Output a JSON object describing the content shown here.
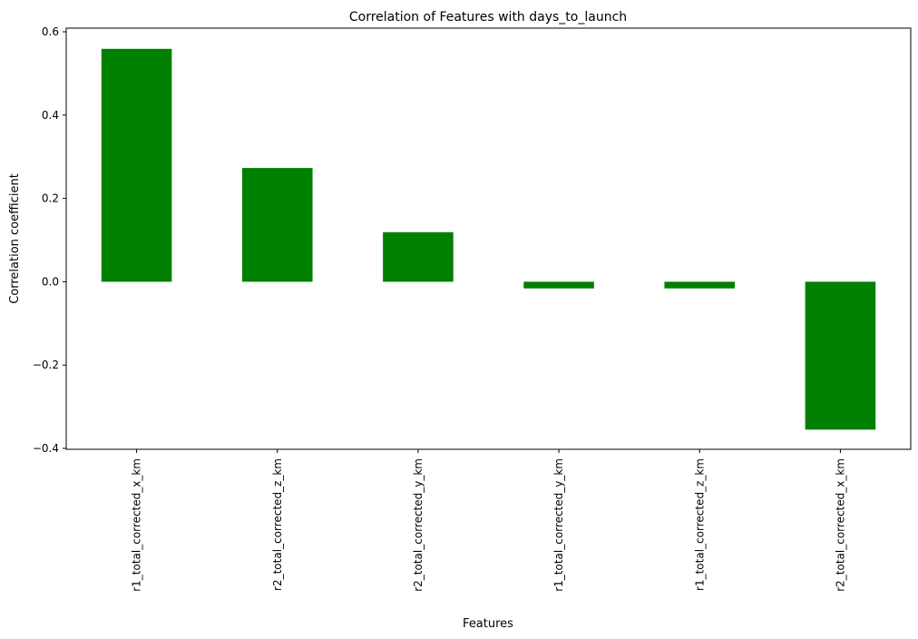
{
  "chart_data": {
    "type": "bar",
    "title": "Correlation of Features with days_to_launch",
    "xlabel": "Features",
    "ylabel": "Correlation coefficient",
    "categories": [
      "r1_total_corrected_x_km",
      "r2_total_corrected_z_km",
      "r2_total_corrected_y_km",
      "r1_total_corrected_y_km",
      "r1_total_corrected_z_km",
      "r2_total_corrected_x_km"
    ],
    "values": [
      0.559,
      0.273,
      0.119,
      -0.016,
      -0.016,
      -0.355
    ],
    "ylim": [
      -0.4,
      0.6
    ],
    "yticks": [
      -0.4,
      -0.2,
      0.0,
      0.2,
      0.4,
      0.6
    ],
    "ytick_labels": [
      "−0.4",
      "−0.2",
      "0.0",
      "0.2",
      "0.4",
      "0.6"
    ],
    "bar_color": "#008000",
    "grid": false,
    "legend": false
  }
}
